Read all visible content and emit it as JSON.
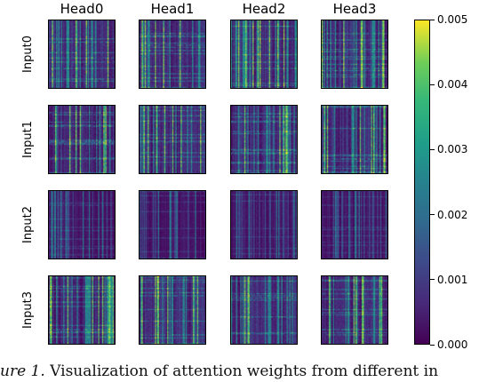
{
  "chart_data": {
    "type": "heatmap",
    "columns": [
      "Head0",
      "Head1",
      "Head2",
      "Head3"
    ],
    "rows": [
      "Input0",
      "Input1",
      "Input2",
      "Input3"
    ],
    "colorbar": {
      "min": 0.0,
      "max": 0.005,
      "colormap": "viridis",
      "ticks": [
        "0.000",
        "0.001",
        "0.002",
        "0.003",
        "0.004",
        "0.005"
      ]
    },
    "caption_prefix": "ure 1.",
    "caption_text": "Visualization of attention weights from different in"
  }
}
